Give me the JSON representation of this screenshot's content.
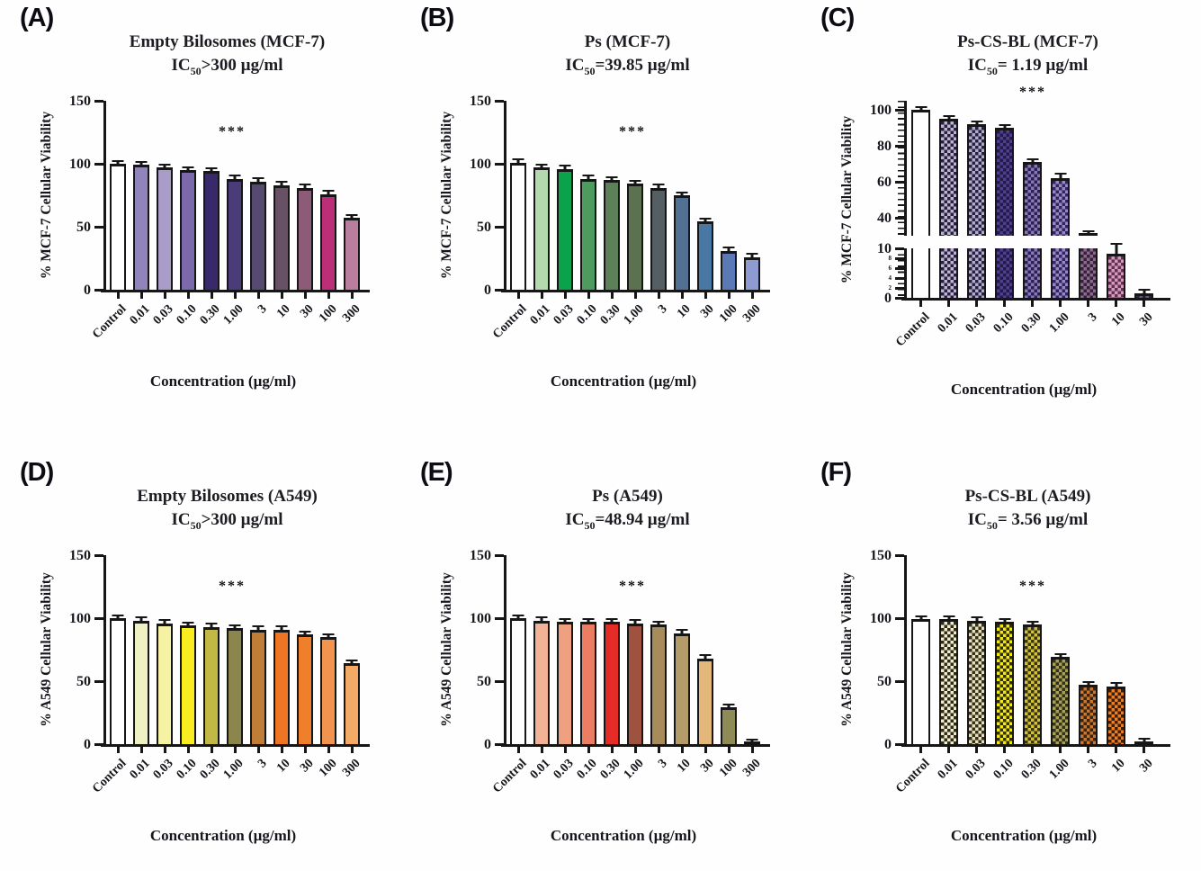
{
  "figure": {
    "description": "Six-panel cytotoxicity bar figure",
    "significance_marker": "***",
    "axis_color": "#161616"
  },
  "chart_data": [
    {
      "type": "bar",
      "panel_label": "(A)",
      "title": "Empty Bilosomes (MCF-7)",
      "ic": {
        "prefix": "IC",
        "sub": "50",
        "rest": ">300 µg/ml"
      },
      "ylabel": "% MCF-7 Cellular Viability",
      "xlabel": "Concentration (µg/ml)",
      "significance": "***",
      "ylim": [
        0,
        150
      ],
      "yticks": [
        150,
        100,
        50,
        0
      ],
      "broken_axis": false,
      "categories": [
        "Control",
        "0.01",
        "0.03",
        "0.10",
        "0.30",
        "1.00",
        "3",
        "10",
        "30",
        "100",
        "300"
      ],
      "values": [
        100,
        99,
        97,
        95,
        94,
        88,
        86,
        83,
        81,
        76,
        57
      ],
      "errors": [
        0.8,
        0.5,
        0.5,
        0.5,
        1.2,
        0.8,
        0.5,
        0.5,
        0.8,
        1.0,
        0.5
      ],
      "fills": [
        "#ffffff",
        "#9184bb",
        "#a99cc9",
        "#7b69ab",
        "#38296b",
        "#4a3b79",
        "#564a70",
        "#685165",
        "#8d5b77",
        "#bb2e78",
        "#b97e9d"
      ]
    },
    {
      "type": "bar",
      "panel_label": "(B)",
      "title": "Ps (MCF-7)",
      "ic": {
        "prefix": "IC",
        "sub": "50",
        "rest": "=39.85 µg/ml"
      },
      "ylabel": "% MCF-7 Cellular Viability",
      "xlabel": "Concentration (µg/ml)",
      "significance": "***",
      "ylim": [
        0,
        150
      ],
      "yticks": [
        150,
        100,
        50,
        0
      ],
      "broken_axis": false,
      "categories": [
        "Control",
        "0.01",
        "0.03",
        "0.10",
        "0.30",
        "1.00",
        "3",
        "10",
        "30",
        "100",
        "300"
      ],
      "values": [
        101,
        97,
        96,
        88,
        87,
        84,
        81,
        75,
        54,
        31,
        26
      ],
      "errors": [
        1.0,
        0.5,
        0.5,
        2.0,
        0.5,
        0.8,
        0.5,
        1.0,
        0.5,
        1.5,
        0.8
      ],
      "fills": [
        "#ffffff",
        "#b4d9af",
        "#0aa34c",
        "#4e9b5f",
        "#5c8158",
        "#5b7150",
        "#555f63",
        "#517092",
        "#4a78a4",
        "#5b7ab5",
        "#8d9bd0"
      ]
    },
    {
      "type": "bar",
      "panel_label": "(C)",
      "title": "Ps-CS-BL (MCF-7)",
      "ic": {
        "prefix": "IC",
        "sub": "50",
        "rest": "= 1.19 µg/ml"
      },
      "ylabel": "% MCF-7 Cellular Viability",
      "xlabel": "Concentration (µg/ml)",
      "significance": "***",
      "broken_axis": true,
      "ylim_upper": [
        30,
        105
      ],
      "yticks_upper": [
        100,
        80,
        60,
        40
      ],
      "ylim_lower": [
        0,
        10
      ],
      "yticks_lower": [
        10,
        8,
        6,
        4,
        2,
        0
      ],
      "categories": [
        "Control",
        "0.01",
        "0.03",
        "0.10",
        "0.30",
        "1.00",
        "3",
        "10",
        "30"
      ],
      "values": [
        100,
        95,
        92,
        90,
        71,
        62,
        31,
        9,
        1
      ],
      "errors": [
        0.5,
        0.8,
        0.8,
        0.8,
        1.2,
        1.8,
        1.2,
        1.8,
        0.4
      ],
      "fills": [
        "#ffffff",
        [
          "#27203f",
          "#bdb5cf"
        ],
        [
          "#27203f",
          "#b3abce"
        ],
        [
          "#231a4a",
          "#4f3f8d"
        ],
        [
          "#2a2152",
          "#8878b5"
        ],
        [
          "#302560",
          "#9888c0"
        ],
        [
          "#352042",
          "#8a6a85"
        ],
        [
          "#5e3352",
          "#d898bc"
        ],
        [
          "#2a2238",
          "#6a5a78"
        ]
      ]
    },
    {
      "type": "bar",
      "panel_label": "(D)",
      "title": "Empty Bilosomes (A549)",
      "ic": {
        "prefix": "IC",
        "sub": "50",
        "rest": ">300 µg/ml"
      },
      "ylabel": "% A549 Cellular Viability",
      "xlabel": "Concentration (µg/ml)",
      "significance": "***",
      "ylim": [
        0,
        150
      ],
      "yticks": [
        150,
        100,
        50,
        0
      ],
      "broken_axis": false,
      "categories": [
        "Control",
        "0.01",
        "0.03",
        "0.10",
        "0.30",
        "1.00",
        "3",
        "10",
        "30",
        "100",
        "300"
      ],
      "values": [
        100,
        98,
        96,
        94,
        93,
        92,
        91,
        91,
        87,
        85,
        64
      ],
      "errors": [
        0.5,
        0.5,
        0.5,
        0.5,
        0.5,
        0.5,
        0.5,
        1.2,
        0.5,
        0.8,
        0.5
      ],
      "fills": [
        "#ffffff",
        "#eff0c3",
        "#f5f2a3",
        "#f9ec20",
        "#c1b845",
        "#8b854e",
        "#c07d37",
        "#ee7524",
        "#ef7f2b",
        "#f2934e",
        "#f3aa67"
      ]
    },
    {
      "type": "bar",
      "panel_label": "(E)",
      "title": "Ps (A549)",
      "ic": {
        "prefix": "IC",
        "sub": "50",
        "rest": "=48.94 µg/ml"
      },
      "ylabel": "% A549 Cellular Viability",
      "xlabel": "Concentration (µg/ml)",
      "significance": "***",
      "ylim": [
        0,
        150
      ],
      "yticks": [
        150,
        100,
        50,
        0
      ],
      "broken_axis": false,
      "categories": [
        "Control",
        "0.01",
        "0.03",
        "0.10",
        "0.30",
        "1.00",
        "3",
        "10",
        "30",
        "100",
        "300"
      ],
      "values": [
        100,
        98,
        97,
        97,
        97,
        96,
        95,
        88,
        68,
        29,
        0.7
      ],
      "errors": [
        0.8,
        0.5,
        0.5,
        0.5,
        0.5,
        0.5,
        0.8,
        0.8,
        0.8,
        0.8,
        0.3
      ],
      "fills": [
        "#ffffff",
        "#f1b296",
        "#efa080",
        "#ea7d62",
        "#e62c26",
        "#a05240",
        "#a78b5b",
        "#b49b6a",
        "#e3b77a",
        "#8f8b56",
        "#9a9a6a"
      ]
    },
    {
      "type": "bar",
      "panel_label": "(F)",
      "title": "Ps-CS-BL (A549)",
      "ic": {
        "prefix": "IC",
        "sub": "50",
        "rest": "= 3.56 µg/ml"
      },
      "ylabel": "% A549 Cellular Viability",
      "xlabel": "Concentration (µg/ml)",
      "significance": "***",
      "ylim": [
        0,
        150
      ],
      "yticks": [
        150,
        100,
        50,
        0
      ],
      "broken_axis": false,
      "categories": [
        "Control",
        "0.01",
        "0.03",
        "0.10",
        "0.30",
        "1.00",
        "3",
        "10",
        "30"
      ],
      "values": [
        99,
        99,
        98,
        97,
        95,
        69,
        47,
        46,
        2
      ],
      "errors": [
        0.8,
        0.8,
        0.8,
        0.8,
        1.0,
        1.5,
        1.2,
        0.8,
        0.5
      ],
      "fills": [
        "#ffffff",
        [
          "#2e2c16",
          "#f0ead0"
        ],
        [
          "#33301c",
          "#e8e0ba"
        ],
        [
          "#2f2c10",
          "#f2e812"
        ],
        [
          "#383415",
          "#d2c233"
        ],
        [
          "#30301c",
          "#a8a055"
        ],
        [
          "#3a2410",
          "#c9762e"
        ],
        [
          "#3a2008",
          "#ef7d22"
        ],
        [
          "#2a2a16",
          "#7a7a4e"
        ]
      ]
    }
  ]
}
